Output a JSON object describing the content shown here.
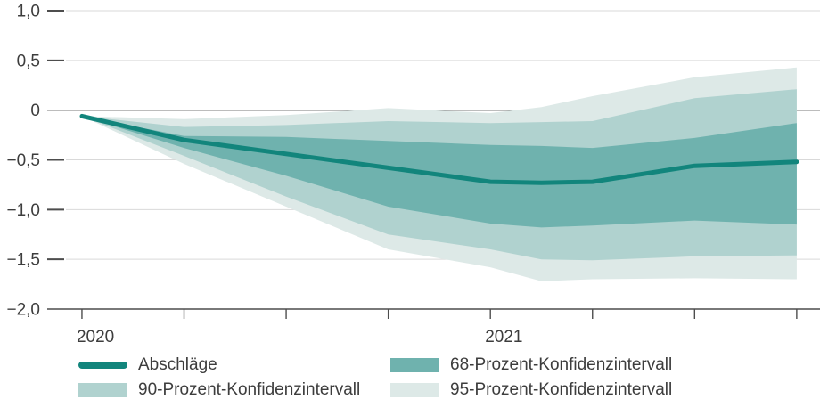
{
  "chart_data": {
    "type": "line",
    "title": "",
    "xlabel": "",
    "ylabel": "",
    "xlim": [
      2019.915,
      2021.807
    ],
    "ylim": [
      -2.0,
      1.0
    ],
    "grid": true,
    "legend_position": "bottom",
    "x": [
      2020.0,
      2020.25,
      2020.5,
      2020.75,
      2021.0,
      2021.125,
      2021.25,
      2021.5,
      2021.75
    ],
    "series": [
      {
        "name": "95-Prozent-Konfidenzintervall",
        "kind": "band",
        "color": "#dde9e7",
        "upper": [
          -0.06,
          -0.09,
          -0.05,
          0.02,
          -0.03,
          0.03,
          0.14,
          0.33,
          0.43
        ],
        "lower": [
          -0.06,
          -0.54,
          -0.97,
          -1.4,
          -1.58,
          -1.72,
          -1.7,
          -1.69,
          -1.7
        ]
      },
      {
        "name": "90-Prozent-Konfidenzintervall",
        "kind": "band",
        "color": "#b0d2cf",
        "upper": [
          -0.06,
          -0.17,
          -0.15,
          -0.11,
          -0.13,
          -0.12,
          -0.11,
          0.12,
          0.21
        ],
        "lower": [
          -0.06,
          -0.46,
          -0.87,
          -1.25,
          -1.4,
          -1.5,
          -1.51,
          -1.47,
          -1.46
        ]
      },
      {
        "name": "68-Prozent-Konfidenzintervall",
        "kind": "band",
        "color": "#6fb2ae",
        "upper": [
          -0.06,
          -0.26,
          -0.27,
          -0.31,
          -0.35,
          -0.36,
          -0.38,
          -0.28,
          -0.13
        ],
        "lower": [
          -0.06,
          -0.38,
          -0.66,
          -0.97,
          -1.14,
          -1.18,
          -1.16,
          -1.11,
          -1.15
        ]
      },
      {
        "name": "Abschläge",
        "kind": "line",
        "color": "#12857c",
        "values": [
          -0.06,
          -0.3,
          -0.44,
          -0.58,
          -0.72,
          -0.73,
          -0.72,
          -0.56,
          -0.52
        ]
      }
    ],
    "yticks": [
      {
        "value": 1.0,
        "label": "1,0"
      },
      {
        "value": 0.5,
        "label": "0,5"
      },
      {
        "value": 0,
        "label": "0"
      },
      {
        "value": -0.5,
        "label": "−0,5"
      },
      {
        "value": -1.0,
        "label": "−1,0"
      },
      {
        "value": -1.5,
        "label": "−1,5"
      },
      {
        "value": -2.0,
        "label": "−2,0"
      }
    ],
    "xticks": [
      {
        "value": 2020.0,
        "label": "2020"
      },
      {
        "value": 2020.25,
        "label": ""
      },
      {
        "value": 2020.5,
        "label": ""
      },
      {
        "value": 2020.75,
        "label": ""
      },
      {
        "value": 2021.0,
        "label": "2021"
      },
      {
        "value": 2021.25,
        "label": ""
      },
      {
        "value": 2021.5,
        "label": ""
      },
      {
        "value": 2021.75,
        "label": ""
      }
    ]
  },
  "legend": {
    "columns": [
      {
        "items": [
          {
            "label": "Abschläge",
            "swatch": "line",
            "color": "#12857c"
          },
          {
            "label": "90-Prozent-Konfidenzintervall",
            "swatch": "rect",
            "color": "#b0d2cf"
          }
        ]
      },
      {
        "items": [
          {
            "label": "68-Prozent-Konfidenzintervall",
            "swatch": "rect",
            "color": "#6fb2ae"
          },
          {
            "label": "95-Prozent-Konfidenzintervall",
            "swatch": "rect",
            "color": "#dde9e7"
          }
        ]
      }
    ]
  },
  "colors": {
    "line": "#12857c",
    "band68": "#6fb2ae",
    "band90": "#b0d2cf",
    "band95": "#dde9e7",
    "grid": "#d9d9d9",
    "axis": "#4d4d4d",
    "text": "#3d3d3d"
  }
}
